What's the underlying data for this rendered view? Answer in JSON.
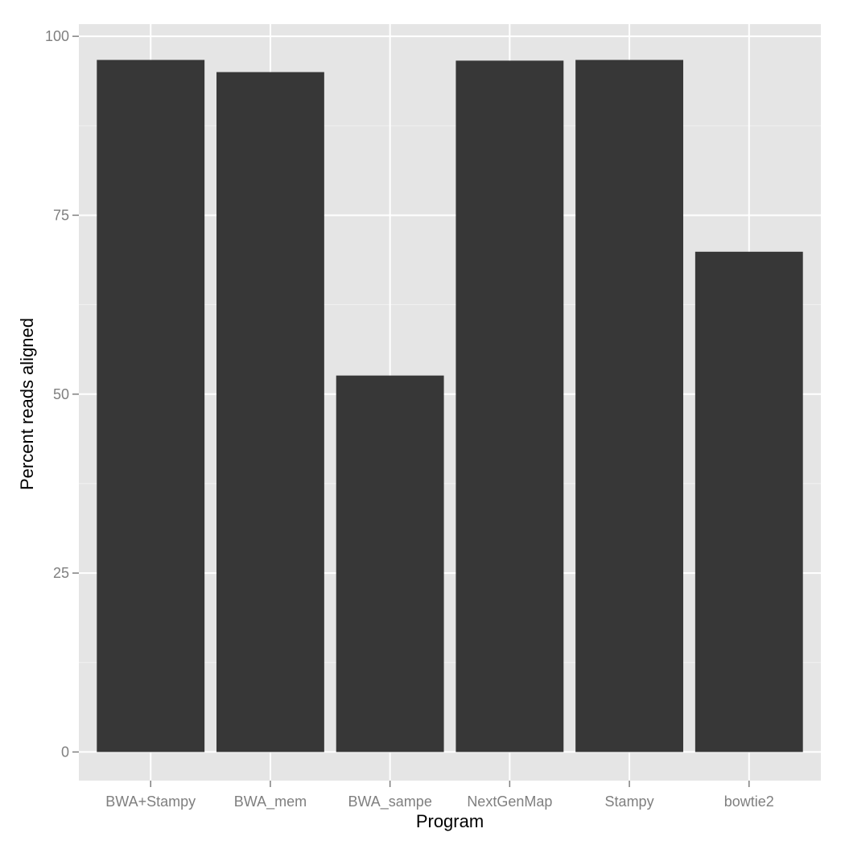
{
  "chart_data": {
    "type": "bar",
    "title": "",
    "xlabel": "Program",
    "ylabel": "Percent reads aligned",
    "categories": [
      "BWA+Stampy",
      "BWA_mem",
      "BWA_sampe",
      "NextGenMap",
      "Stampy",
      "bowtie2"
    ],
    "values": [
      96.7,
      95.0,
      52.6,
      96.6,
      96.7,
      69.9
    ],
    "ylim": [
      -4,
      101.7
    ],
    "yticks": [
      0,
      25,
      50,
      75,
      100
    ],
    "ytick_labels": [
      "0",
      "25",
      "50",
      "75",
      "100"
    ],
    "grid": true,
    "legend": "none",
    "colors": {
      "bar": "#373737",
      "panel": "#e5e5e5",
      "grid_major": "#ffffff",
      "grid_minor": "#f2f2f2",
      "tick_label": "#7f7f7f"
    }
  }
}
